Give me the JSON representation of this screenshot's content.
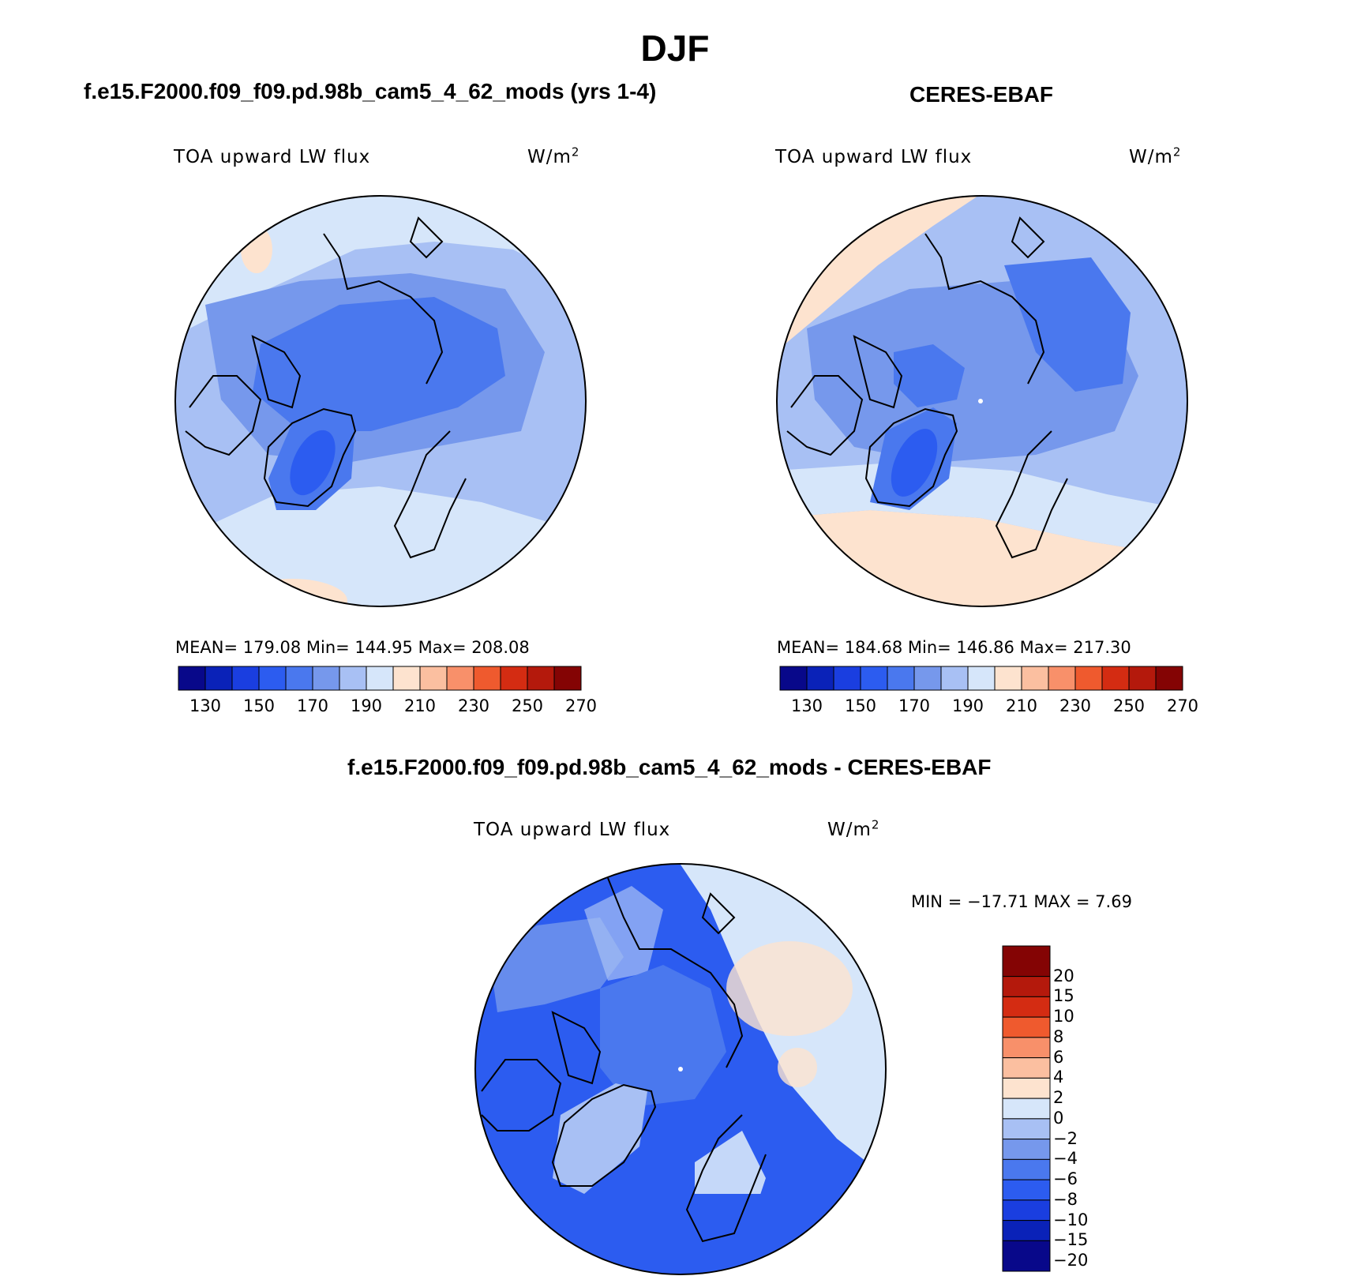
{
  "figure": {
    "title": "DJF",
    "panel_model_title": "f.e15.F2000.f09_f09.pd.98b_cam5_4_62_mods (yrs 1-4)",
    "panel_obs_title": "CERES-EBAF",
    "panel_diff_title": "f.e15.F2000.f09_f09.pd.98b_cam5_4_62_mods - CERES-EBAF"
  },
  "panels": {
    "model": {
      "variable": "TOA upward LW flux",
      "units_base": "W/m",
      "units_exp": "2",
      "stats": "MEAN= 179.08   Min= 144.95   Max= 208.08"
    },
    "obs": {
      "variable": "TOA upward LW flux",
      "units_base": "W/m",
      "units_exp": "2",
      "stats": "MEAN= 184.68   Min= 146.86   Max= 217.30"
    },
    "diff": {
      "variable": "TOA upward LW flux",
      "units_base": "W/m",
      "units_exp": "2",
      "stats": "MIN = −17.71 MAX =    7.69"
    }
  },
  "colorbars": {
    "abs": {
      "colors": [
        "#08088a",
        "#0a22b8",
        "#1a3ee0",
        "#2c5cf0",
        "#4a78ee",
        "#7698ec",
        "#a8c0f4",
        "#d6e6fa",
        "#fde3cf",
        "#fbbfa0",
        "#f8906a",
        "#ef5a2e",
        "#d42c12",
        "#b4190c",
        "#840404"
      ],
      "tick_labels": [
        "130",
        "150",
        "170",
        "190",
        "210",
        "230",
        "250",
        "270"
      ]
    },
    "diff": {
      "colors_bottom_to_top": [
        "#08088a",
        "#0a22b8",
        "#1a3ee0",
        "#2c5cf0",
        "#4a78ee",
        "#7698ec",
        "#a8c0f4",
        "#d6e6fa",
        "#fde3cf",
        "#fbbfa0",
        "#f8906a",
        "#ef5a2e",
        "#d42c12",
        "#b4190c",
        "#840404"
      ],
      "tick_labels_top_to_bottom": [
        "20",
        "15",
        "10",
        "8",
        "6",
        "4",
        "2",
        "0",
        "−2",
        "−4",
        "−6",
        "−8",
        "−10",
        "−15",
        "−20"
      ]
    }
  }
}
